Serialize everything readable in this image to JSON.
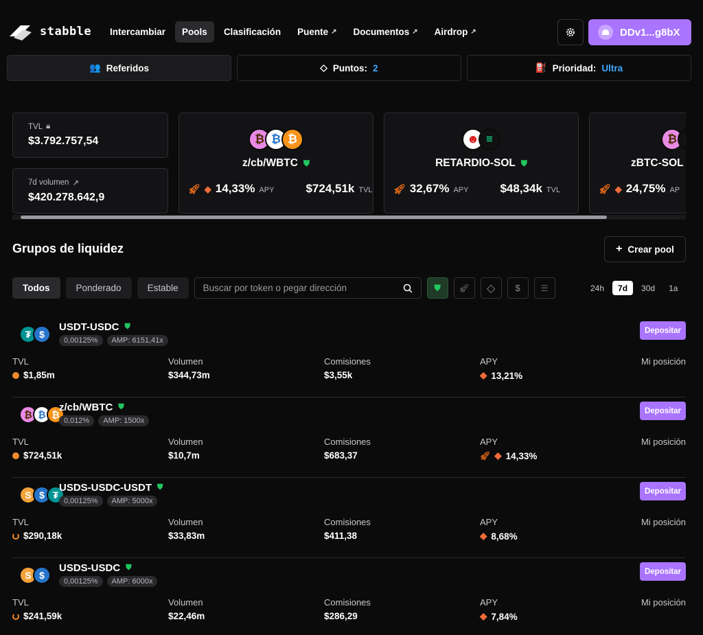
{
  "header": {
    "logo": "stabble",
    "nav": [
      {
        "label": "Intercambiar",
        "external": false,
        "active": false
      },
      {
        "label": "Pools",
        "external": false,
        "active": true
      },
      {
        "label": "Clasificación",
        "external": false,
        "active": false
      },
      {
        "label": "Puente",
        "external": true,
        "active": false
      },
      {
        "label": "Documentos",
        "external": true,
        "active": false
      },
      {
        "label": "Airdrop",
        "external": true,
        "active": false
      }
    ],
    "wallet": "DDv1...g8bX"
  },
  "subbar": {
    "referrals": "Referidos",
    "points_label": "Puntos:",
    "points_value": "2",
    "priority_label": "Prioridad:",
    "priority_value": "Ultra"
  },
  "stats": {
    "tvl_label": "TVL",
    "tvl_value": "$3.792.757,54",
    "volume_label": "7d volumen",
    "volume_value": "$420.278.642,9"
  },
  "featured": [
    {
      "name": "z/cb/WBTC",
      "apy": "14,33%",
      "apy_label": "APY",
      "tvl": "$724,51k",
      "tvl_label": "TVL",
      "coins": [
        "₿",
        "₿",
        "₿"
      ]
    },
    {
      "name": "RETARDIO-SOL",
      "apy": "32,67%",
      "apy_label": "APY",
      "tvl": "$48,34k",
      "tvl_label": "TVL",
      "coins": [
        "☻",
        "≡"
      ]
    },
    {
      "name": "zBTC-SOL",
      "apy": "24,75%",
      "apy_label": "AP",
      "tvl": "",
      "tvl_label": "",
      "coins": [
        "₿",
        "≡"
      ]
    }
  ],
  "liquidity": {
    "title": "Grupos de liquidez",
    "create_label": "Crear pool",
    "filters": [
      "Todos",
      "Ponderado",
      "Estable"
    ],
    "search_placeholder": "Buscar por token o pegar dirección",
    "periods": [
      "24h",
      "7d",
      "30d",
      "1a"
    ],
    "active_period": "7d",
    "columns": {
      "tvl": "TVL",
      "volume": "Volumen",
      "fees": "Comisiones",
      "apy": "APY",
      "position": "Mi posición"
    },
    "deposit_label": "Depositar"
  },
  "pools": [
    {
      "name": "USDT-USDC",
      "fee": "0,00125%",
      "amp": "AMP: 6151,41x",
      "tvl": "$1,85m",
      "volume": "$344,73m",
      "fees": "$3,55k",
      "apy": "13,21%",
      "rocket": false,
      "tvl_dot": "full"
    },
    {
      "name": "z/cb/WBTC",
      "fee": "0,012%",
      "amp": "AMP: 1500x",
      "tvl": "$724,51k",
      "volume": "$10,7m",
      "fees": "$683,37",
      "apy": "14,33%",
      "rocket": true,
      "tvl_dot": "full"
    },
    {
      "name": "USDS-USDC-USDT",
      "fee": "0,00125%",
      "amp": "AMP: 5000x",
      "tvl": "$290,18k",
      "volume": "$33,83m",
      "fees": "$411,38",
      "apy": "8,68%",
      "rocket": false,
      "tvl_dot": "half"
    },
    {
      "name": "USDS-USDC",
      "fee": "0,00125%",
      "amp": "AMP: 6000x",
      "tvl": "$241,59k",
      "volume": "$22,46m",
      "fees": "$286,29",
      "apy": "7,84%",
      "rocket": false,
      "tvl_dot": "half"
    }
  ]
}
